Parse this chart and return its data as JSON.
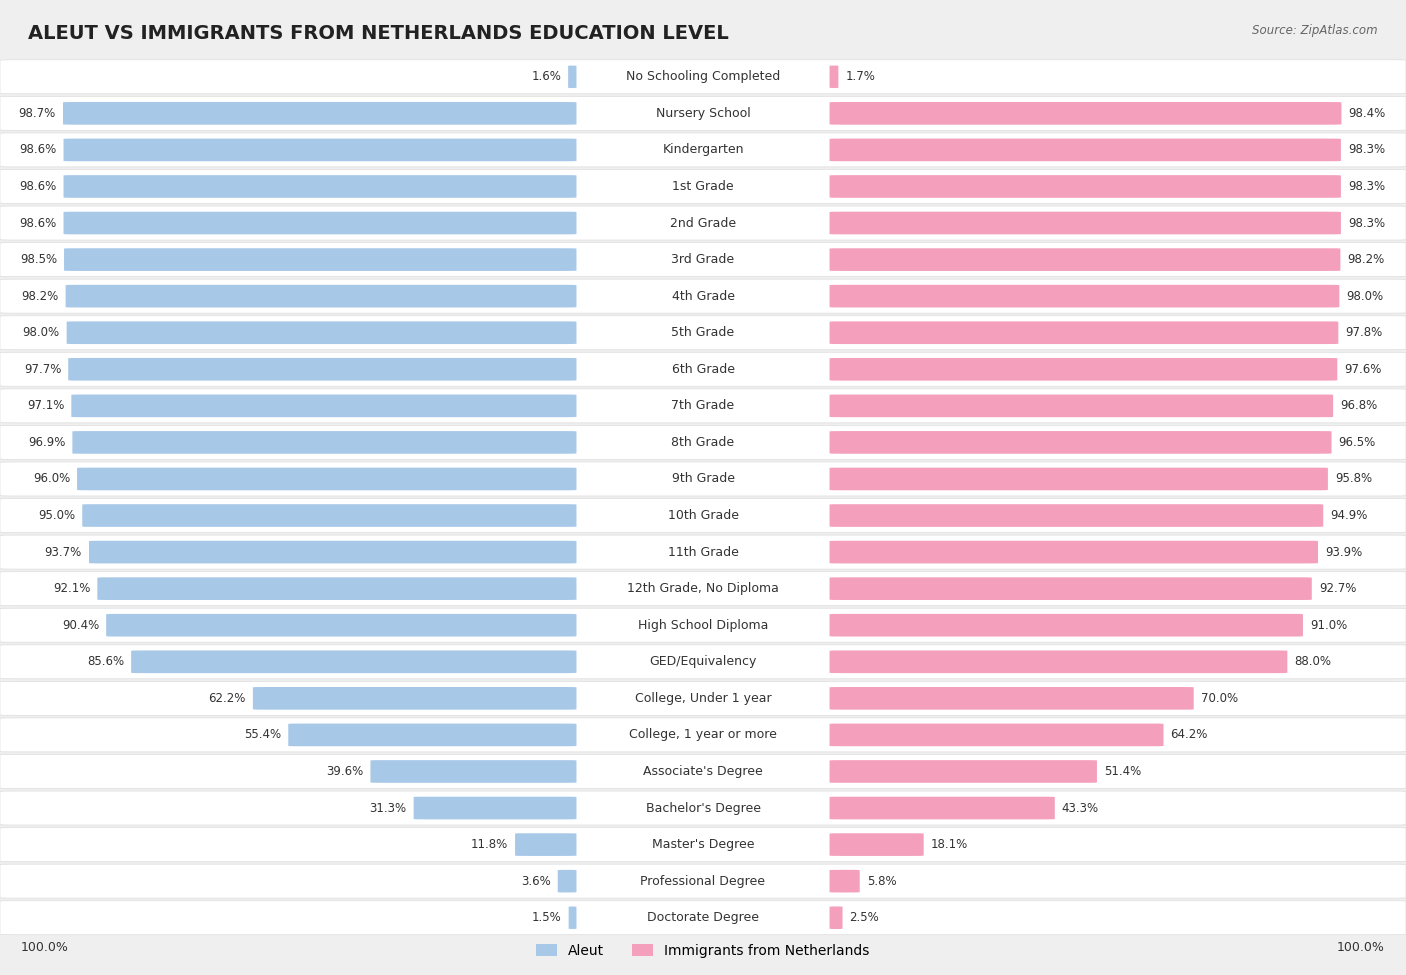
{
  "title": "ALEUT VS IMMIGRANTS FROM NETHERLANDS EDUCATION LEVEL",
  "source": "Source: ZipAtlas.com",
  "categories": [
    "No Schooling Completed",
    "Nursery School",
    "Kindergarten",
    "1st Grade",
    "2nd Grade",
    "3rd Grade",
    "4th Grade",
    "5th Grade",
    "6th Grade",
    "7th Grade",
    "8th Grade",
    "9th Grade",
    "10th Grade",
    "11th Grade",
    "12th Grade, No Diploma",
    "High School Diploma",
    "GED/Equivalency",
    "College, Under 1 year",
    "College, 1 year or more",
    "Associate's Degree",
    "Bachelor's Degree",
    "Master's Degree",
    "Professional Degree",
    "Doctorate Degree"
  ],
  "aleut": [
    1.6,
    98.7,
    98.6,
    98.6,
    98.6,
    98.5,
    98.2,
    98.0,
    97.7,
    97.1,
    96.9,
    96.0,
    95.0,
    93.7,
    92.1,
    90.4,
    85.6,
    62.2,
    55.4,
    39.6,
    31.3,
    11.8,
    3.6,
    1.5
  ],
  "netherlands": [
    1.7,
    98.4,
    98.3,
    98.3,
    98.3,
    98.2,
    98.0,
    97.8,
    97.6,
    96.8,
    96.5,
    95.8,
    94.9,
    93.9,
    92.7,
    91.0,
    88.0,
    70.0,
    64.2,
    51.4,
    43.3,
    18.1,
    5.8,
    2.5
  ],
  "aleut_color": "#a8c8e8",
  "netherlands_color": "#f4a0bc",
  "bg_color": "#efefef",
  "row_bg_color": "#ffffff",
  "row_bg_alt": "#f8f8f8",
  "title_fontsize": 14,
  "label_fontsize": 9,
  "value_fontsize": 8.5,
  "legend_fontsize": 10,
  "axis_label_fontsize": 9
}
